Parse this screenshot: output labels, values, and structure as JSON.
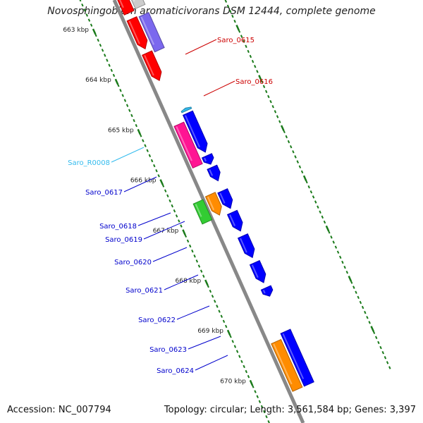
{
  "title": "Novosphingobium aromaticivorans DSM 12444, complete genome",
  "footer": {
    "accession": "Accession: NC_007794",
    "summary": "Topology: circular; Length: 3,561,584 bp; Genes: 3,397"
  },
  "colors": {
    "backbone": "#888888",
    "tick": "#1a7a1a",
    "red": "#ff0000",
    "purple": "#7b68ee",
    "blue": "#0000ff",
    "pink": "#ff1493",
    "green": "#33cc33",
    "orange": "#ff8c00",
    "gray": "#cccccc",
    "cyan": "#33bbee"
  },
  "ruler": [
    {
      "kbp": 663,
      "label": "663 kbp"
    },
    {
      "kbp": 664,
      "label": "664 kbp"
    },
    {
      "kbp": 665,
      "label": "665 kbp"
    },
    {
      "kbp": 666,
      "label": "666 kbp"
    },
    {
      "kbp": 667,
      "label": "667 kbp"
    },
    {
      "kbp": 668,
      "label": "668 kbp"
    },
    {
      "kbp": 669,
      "label": "669 kbp"
    },
    {
      "kbp": 670,
      "label": "670 kbp"
    }
  ],
  "features": [
    {
      "start": 662.6,
      "end": 662.98,
      "lane": 2,
      "color": "gray",
      "direction": "none"
    },
    {
      "start": 662.62,
      "end": 663.0,
      "lane": 1,
      "color": "red",
      "direction": "none"
    },
    {
      "start": 663.12,
      "end": 663.72,
      "lane": 1,
      "color": "red",
      "direction": "forward"
    },
    {
      "start": 663.14,
      "end": 663.84,
      "lane": 2,
      "color": "purple",
      "direction": "none"
    },
    {
      "start": 663.8,
      "end": 664.35,
      "lane": 1,
      "color": "red",
      "direction": "forward"
    },
    {
      "start": 665.0,
      "end": 665.05,
      "lane": 2,
      "color": "cyan",
      "direction": "reverse"
    },
    {
      "start": 665.22,
      "end": 666.05,
      "lane": 1,
      "color": "pink",
      "direction": "none"
    },
    {
      "start": 665.1,
      "end": 665.88,
      "lane": 2,
      "color": "blue",
      "direction": "forward"
    },
    {
      "start": 665.95,
      "end": 666.12,
      "lane": 2,
      "color": "blue",
      "direction": "forward"
    },
    {
      "start": 666.18,
      "end": 666.45,
      "lane": 2,
      "color": "blue",
      "direction": "forward"
    },
    {
      "start": 666.65,
      "end": 667.05,
      "lane": 0,
      "color": "green",
      "direction": "none"
    },
    {
      "start": 666.62,
      "end": 667.03,
      "lane": 1,
      "color": "orange",
      "direction": "forward"
    },
    {
      "start": 666.65,
      "end": 667.0,
      "lane": 2,
      "color": "blue",
      "direction": "forward"
    },
    {
      "start": 667.08,
      "end": 667.45,
      "lane": 2,
      "color": "blue",
      "direction": "forward"
    },
    {
      "start": 667.55,
      "end": 667.98,
      "lane": 2,
      "color": "blue",
      "direction": "forward"
    },
    {
      "start": 668.08,
      "end": 668.48,
      "lane": 2,
      "color": "blue",
      "direction": "forward"
    },
    {
      "start": 668.58,
      "end": 668.75,
      "lane": 2,
      "color": "blue",
      "direction": "forward"
    },
    {
      "start": 669.55,
      "end": 670.5,
      "lane": 1,
      "color": "orange",
      "direction": "none"
    },
    {
      "start": 669.45,
      "end": 670.5,
      "lane": 2,
      "color": "blue",
      "direction": "none"
    }
  ],
  "labels": [
    {
      "text": "Saro_0615",
      "color": "#cc0000",
      "anchor": "left"
    },
    {
      "text": "Saro_0616",
      "color": "#cc0000",
      "anchor": "left"
    },
    {
      "text": "Saro_R0008",
      "color": "#33bbee",
      "anchor": "right"
    },
    {
      "text": "Saro_0617",
      "color": "#0000cc",
      "anchor": "right"
    },
    {
      "text": "Saro_0618",
      "color": "#0000cc",
      "anchor": "right"
    },
    {
      "text": "Saro_0619",
      "color": "#0000cc",
      "anchor": "right"
    },
    {
      "text": "Saro_0620",
      "color": "#0000cc",
      "anchor": "right"
    },
    {
      "text": "Saro_0621",
      "color": "#0000cc",
      "anchor": "right"
    },
    {
      "text": "Saro_0622",
      "color": "#0000cc",
      "anchor": "right"
    },
    {
      "text": "Saro_0623",
      "color": "#0000cc",
      "anchor": "right"
    },
    {
      "text": "Saro_0624",
      "color": "#0000cc",
      "anchor": "right"
    }
  ]
}
